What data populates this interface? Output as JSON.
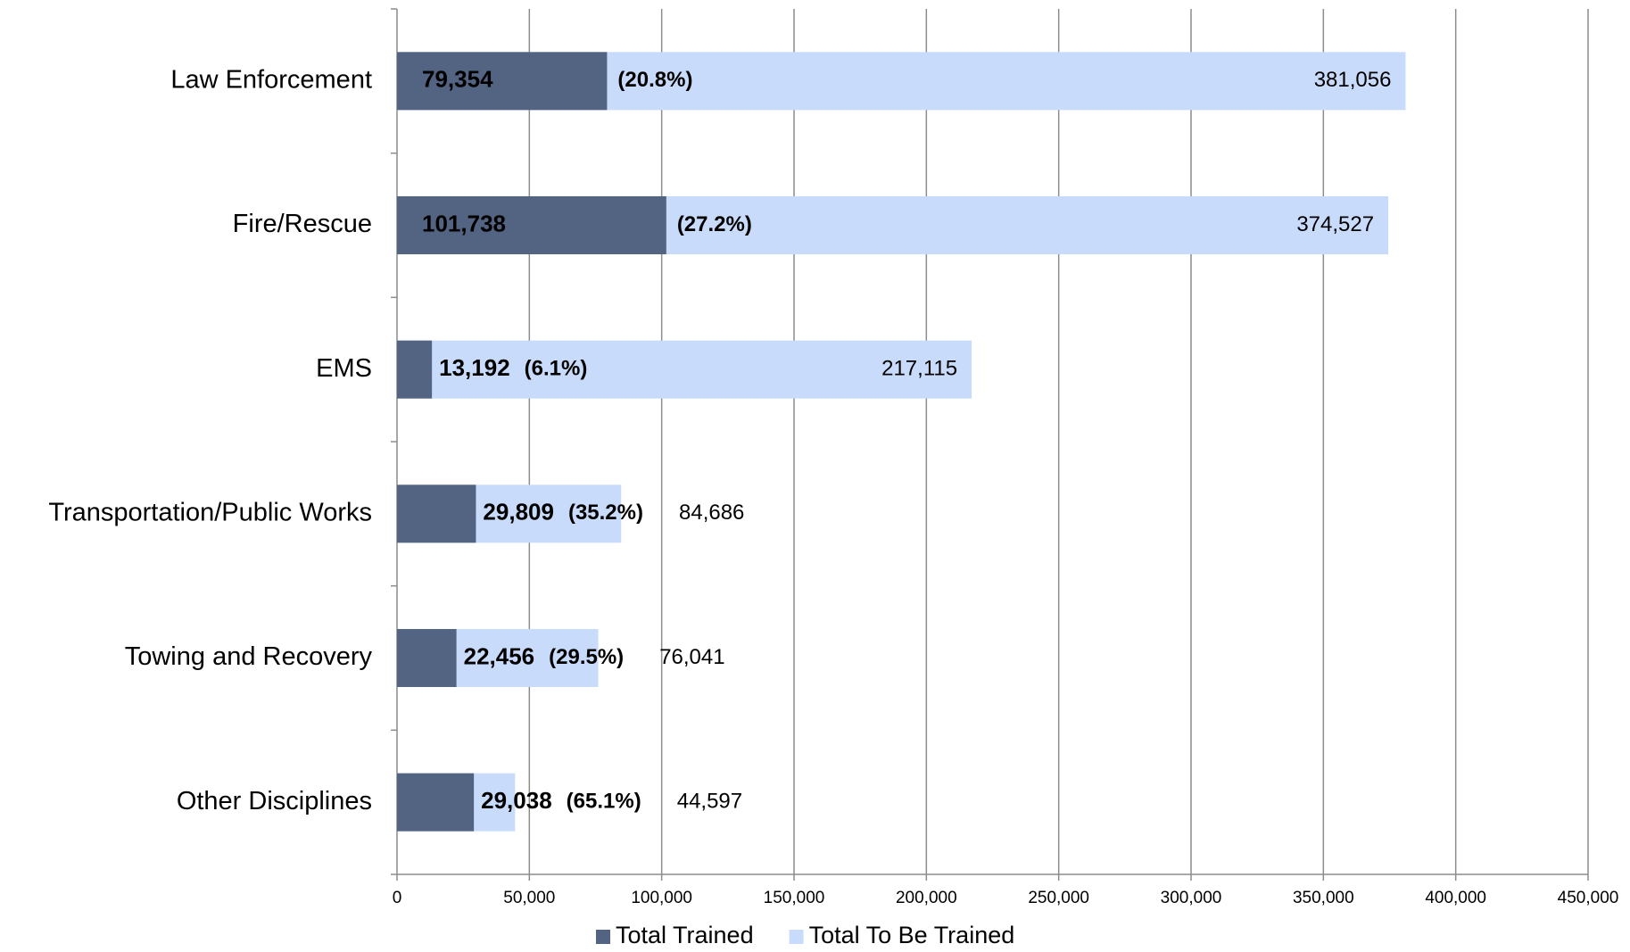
{
  "chart_data": {
    "type": "overlap-bar",
    "categories": [
      "Law Enforcement",
      "Fire/Rescue",
      "EMS",
      "Transportation/Public Works",
      "Towing and Recovery",
      "Other Disciplines"
    ],
    "series": [
      {
        "name": "Total Trained",
        "color": "#536482",
        "values": [
          79354,
          101738,
          13192,
          29809,
          22456,
          29038
        ],
        "value_labels": [
          "79,354",
          "101,738",
          "13,192",
          "29,809",
          "22,456",
          "29,038"
        ]
      },
      {
        "name": "Total To Be Trained",
        "color": "#c9dbfb",
        "values": [
          381056,
          374527,
          217115,
          84686,
          76041,
          44597
        ],
        "value_labels": [
          "381,056",
          "374,527",
          "217,115",
          "84,686",
          "76,041",
          "44,597"
        ]
      }
    ],
    "annotations": [
      "(20.8%)",
      "(27.2%)",
      "(6.1%)",
      "(35.2%)",
      "(29.5%)",
      "(65.1%)"
    ],
    "xlim": [
      0,
      450000
    ],
    "xticks": [
      0,
      {
        "value": 50000,
        "label": "50,000"
      },
      {
        "value": 100000,
        "label": "100,000"
      },
      {
        "value": 150000,
        "label": "150,000"
      },
      {
        "value": 200000,
        "label": "200,000"
      },
      {
        "value": 250000,
        "label": "250,000"
      },
      {
        "value": 300000,
        "label": "300,000"
      },
      {
        "value": 350000,
        "label": "350,000"
      },
      {
        "value": 400000,
        "label": "400,000"
      },
      {
        "value": 450000,
        "label": "450,000"
      }
    ],
    "grid": true,
    "legend": "bottom"
  }
}
